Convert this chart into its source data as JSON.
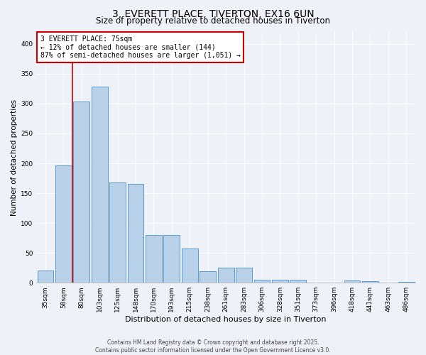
{
  "title1": "3, EVERETT PLACE, TIVERTON, EX16 6UN",
  "title2": "Size of property relative to detached houses in Tiverton",
  "xlabel": "Distribution of detached houses by size in Tiverton",
  "ylabel": "Number of detached properties",
  "categories": [
    "35sqm",
    "58sqm",
    "80sqm",
    "103sqm",
    "125sqm",
    "148sqm",
    "170sqm",
    "193sqm",
    "215sqm",
    "238sqm",
    "261sqm",
    "283sqm",
    "306sqm",
    "328sqm",
    "351sqm",
    "373sqm",
    "396sqm",
    "418sqm",
    "441sqm",
    "463sqm",
    "486sqm"
  ],
  "values": [
    20,
    197,
    303,
    328,
    168,
    165,
    80,
    80,
    57,
    19,
    25,
    25,
    5,
    5,
    5,
    0,
    0,
    4,
    3,
    0,
    1
  ],
  "bar_color": "#b8d0e8",
  "bar_edge_color": "#5a9bd4",
  "annotation_text": "3 EVERETT PLACE: 75sqm\n← 12% of detached houses are smaller (144)\n87% of semi-detached houses are larger (1,051) →",
  "annotation_box_color": "#ffffff",
  "annotation_box_edge_color": "#cc0000",
  "vline_color": "#cc0000",
  "vline_x": 1.5,
  "ylim": [
    0,
    420
  ],
  "yticks": [
    0,
    50,
    100,
    150,
    200,
    250,
    300,
    350,
    400
  ],
  "background_color": "#eef2f8",
  "grid_color": "#ffffff",
  "footer_text": "Contains HM Land Registry data © Crown copyright and database right 2025.\nContains public sector information licensed under the Open Government Licence v3.0.",
  "title1_fontsize": 10,
  "title2_fontsize": 8.5,
  "xlabel_fontsize": 8,
  "ylabel_fontsize": 7.5,
  "tick_fontsize": 6.5,
  "annotation_fontsize": 7,
  "footer_fontsize": 5.5
}
